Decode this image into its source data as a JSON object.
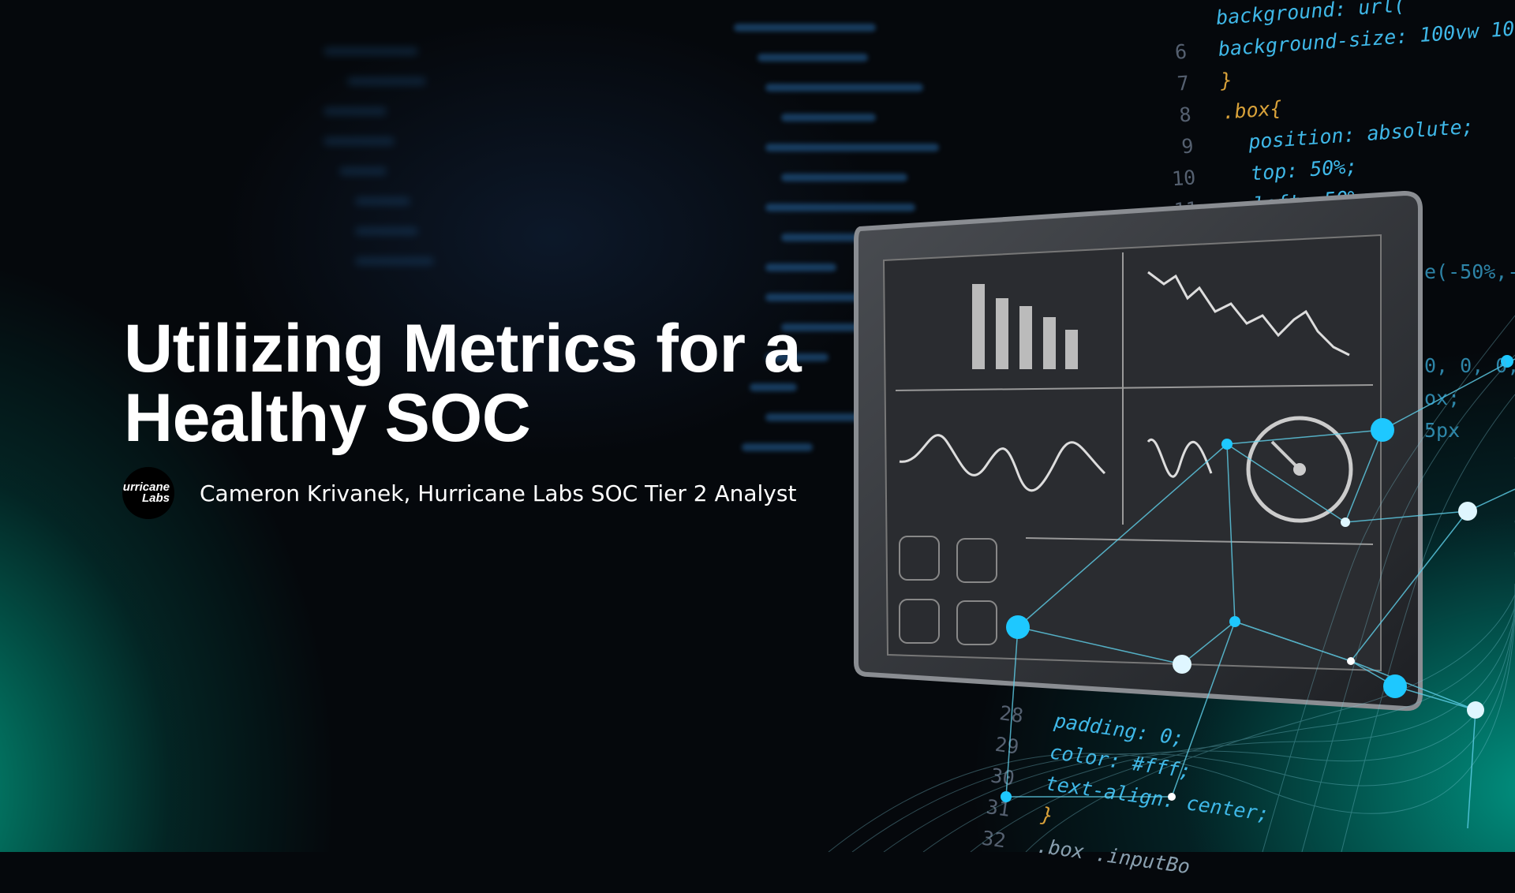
{
  "title": {
    "line1": "Utilizing Metrics for a",
    "line2": "Healthy SOC"
  },
  "author": {
    "logo_text_1": "Hurricane",
    "logo_text_2": "Labs",
    "byline": "Cameron Krivanek, Hurricane Labs SOC Tier 2 Analyst"
  },
  "code_top": [
    {
      "ln": "",
      "text": "background: url(",
      "cls": "k"
    },
    {
      "ln": "6",
      "text": "background-size: 100vw 10",
      "cls": "k"
    },
    {
      "ln": "7",
      "text": "}",
      "cls": "p"
    },
    {
      "ln": "8",
      "text": ".box{",
      "cls": "p"
    },
    {
      "ln": "9",
      "text": "  position: absolute;",
      "cls": "k"
    },
    {
      "ln": "10",
      "text": "  top: 50%;",
      "cls": "k"
    },
    {
      "ln": "11",
      "text": "  left: 50%;",
      "cls": "k"
    }
  ],
  "code_bottom": [
    {
      "ln": "28",
      "text": "padding: 0;",
      "cls": "k"
    },
    {
      "ln": "29",
      "text": "color: #fff;",
      "cls": "k"
    },
    {
      "ln": "30",
      "text": "text-align: center;",
      "cls": "k"
    },
    {
      "ln": "31",
      "text": "}",
      "cls": "p"
    },
    {
      "ln": "32",
      "text": ".box .inputBo",
      "cls": "v"
    }
  ],
  "code_side": [
    "e(-50%,-",
    "0, 0, 0,",
    "ox;",
    "5px"
  ],
  "colors": {
    "accent_teal": "#00a88c",
    "accent_blue": "#1ec8ff",
    "code_blue": "#3fb8e8",
    "code_orange": "#d9a23a"
  }
}
